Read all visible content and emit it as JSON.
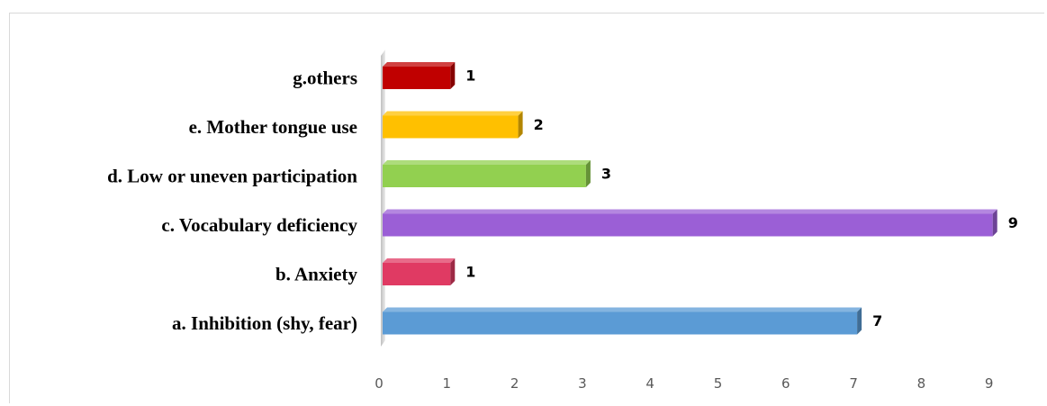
{
  "chart_data": {
    "type": "bar",
    "orientation": "horizontal",
    "categories": [
      "a. Inhibition (shy, fear)",
      "b. Anxiety",
      "c. Vocabulary deficiency",
      "d. Low or uneven participation",
      "e. Mother tongue use",
      "g.others"
    ],
    "values": [
      7,
      1,
      9,
      3,
      2,
      1
    ],
    "colors": [
      "#5b9bd5",
      "#e03a63",
      "#9b5fd6",
      "#92d050",
      "#ffc000",
      "#c00000"
    ],
    "xlim": [
      0,
      9
    ],
    "xticks": [
      "0",
      "1",
      "2",
      "3",
      "4",
      "5",
      "6",
      "7",
      "8",
      "9"
    ],
    "data_labels": [
      "7",
      "1",
      "9",
      "3",
      "2",
      "1"
    ],
    "title": "",
    "xlabel": "",
    "ylabel": "",
    "grid": false,
    "legend": "none",
    "style": "3d-bars"
  }
}
